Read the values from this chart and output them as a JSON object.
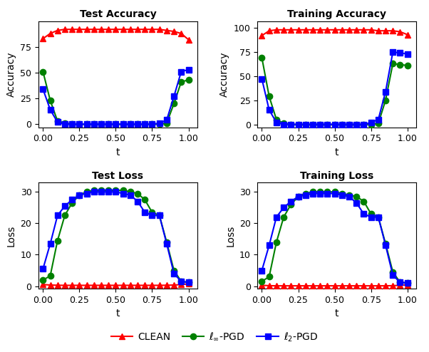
{
  "t_values": [
    0.0,
    0.05,
    0.1,
    0.15,
    0.2,
    0.25,
    0.3,
    0.35,
    0.4,
    0.45,
    0.5,
    0.55,
    0.6,
    0.65,
    0.7,
    0.75,
    0.8,
    0.85,
    0.9,
    0.95,
    1.0
  ],
  "test_acc_clean": [
    83,
    88,
    91,
    92,
    92,
    92,
    92,
    92,
    92,
    92,
    92,
    92,
    92,
    92,
    92,
    92,
    92,
    91,
    90,
    88,
    82
  ],
  "test_acc_linf": [
    51,
    23,
    3,
    1,
    0,
    0,
    0,
    0,
    0,
    0,
    0,
    0,
    0,
    0,
    0,
    0,
    0,
    1,
    20,
    41,
    43
  ],
  "test_acc_l2": [
    34,
    14,
    2,
    0,
    0,
    0,
    0,
    0,
    0,
    0,
    0,
    0,
    0,
    0,
    0,
    0,
    1,
    4,
    27,
    51,
    53
  ],
  "train_acc_clean": [
    92,
    97,
    98,
    98,
    98,
    98,
    98,
    98,
    98,
    98,
    98,
    98,
    98,
    98,
    98,
    98,
    97,
    97,
    97,
    96,
    93
  ],
  "train_acc_linf": [
    69,
    29,
    5,
    1,
    0,
    0,
    0,
    0,
    0,
    0,
    0,
    0,
    0,
    0,
    0,
    0,
    1,
    25,
    63,
    62,
    61
  ],
  "train_acc_l2": [
    47,
    15,
    2,
    0,
    0,
    0,
    0,
    0,
    0,
    0,
    0,
    0,
    0,
    0,
    0,
    2,
    5,
    34,
    75,
    74,
    73
  ],
  "test_loss_clean": [
    0.5,
    0.35,
    0.28,
    0.25,
    0.25,
    0.25,
    0.25,
    0.25,
    0.25,
    0.25,
    0.25,
    0.25,
    0.25,
    0.25,
    0.25,
    0.25,
    0.25,
    0.28,
    0.35,
    0.5,
    0.7
  ],
  "test_loss_linf": [
    1.9,
    3.3,
    14.5,
    22.5,
    26.5,
    29.0,
    30.0,
    30.5,
    30.5,
    30.5,
    30.5,
    30.5,
    30.0,
    29.5,
    27.5,
    23.5,
    22.5,
    14.0,
    5.0,
    1.5,
    1.2
  ],
  "test_loss_l2": [
    5.5,
    13.5,
    22.5,
    25.5,
    27.5,
    29.0,
    29.5,
    30.0,
    30.0,
    30.0,
    30.0,
    29.5,
    29.0,
    27.0,
    23.5,
    22.5,
    22.5,
    13.5,
    4.0,
    1.5,
    1.2
  ],
  "train_loss_clean": [
    0.25,
    0.15,
    0.1,
    0.1,
    0.1,
    0.1,
    0.1,
    0.1,
    0.1,
    0.1,
    0.1,
    0.1,
    0.1,
    0.1,
    0.1,
    0.1,
    0.1,
    0.1,
    0.15,
    0.25,
    0.4
  ],
  "train_loss_linf": [
    1.5,
    3.0,
    14.0,
    22.0,
    26.0,
    28.5,
    29.5,
    30.0,
    30.0,
    30.0,
    30.0,
    29.5,
    29.0,
    28.5,
    27.0,
    23.0,
    22.0,
    13.5,
    4.5,
    1.2,
    1.0
  ],
  "train_loss_l2": [
    5.0,
    13.0,
    22.0,
    25.0,
    27.0,
    28.5,
    29.0,
    29.5,
    29.5,
    29.5,
    29.5,
    29.0,
    28.5,
    26.5,
    23.0,
    22.0,
    22.0,
    13.0,
    3.5,
    1.2,
    1.0
  ],
  "color_clean": "#ff0000",
  "color_linf": "#008000",
  "color_l2": "#0000ff",
  "titles": [
    "Test Accuracy",
    "Training Accuracy",
    "Test Loss",
    "Training Loss"
  ],
  "ylabel_acc": "Accuracy",
  "ylabel_loss": "Loss",
  "xlabel": "t",
  "xticks": [
    0.0,
    0.25,
    0.5,
    0.75,
    1.0
  ],
  "xtick_labels": [
    "0.00",
    "0.25",
    "0.50",
    "0.75",
    "1.00"
  ],
  "legend_labels": [
    "CLEAN",
    "$\\ell_\\infty$-PGD",
    "$\\ell_2$-PGD"
  ],
  "figsize": [
    6.02,
    4.94
  ],
  "dpi": 100
}
